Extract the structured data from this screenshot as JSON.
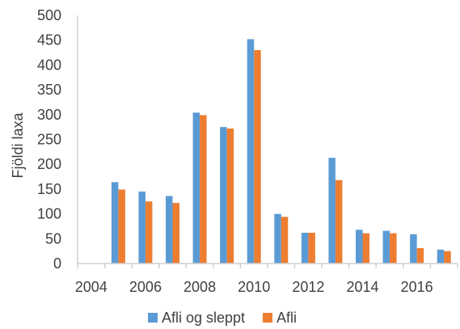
{
  "chart_data": {
    "type": "bar",
    "title": "",
    "xlabel": "",
    "ylabel": "Fjöldi laxa",
    "ylim": [
      0,
      500
    ],
    "yticks": [
      0,
      50,
      100,
      150,
      200,
      250,
      300,
      350,
      400,
      450,
      500
    ],
    "categories": [
      2004,
      2005,
      2006,
      2007,
      2008,
      2009,
      2010,
      2011,
      2012,
      2013,
      2014,
      2015,
      2016,
      2017
    ],
    "xtick_labels": [
      "2004",
      "2006",
      "2008",
      "2010",
      "2012",
      "2014",
      "2016"
    ],
    "grid": false,
    "legend_position": "bottom",
    "series": [
      {
        "name": "Afli og sleppt",
        "color": "#5B9BD5",
        "values": [
          null,
          164,
          145,
          136,
          304,
          275,
          452,
          100,
          62,
          213,
          68,
          66,
          59,
          28
        ]
      },
      {
        "name": "Afli",
        "color": "#ED7D31",
        "values": [
          null,
          149,
          125,
          122,
          299,
          272,
          430,
          94,
          62,
          168,
          61,
          61,
          31,
          25
        ]
      }
    ]
  }
}
